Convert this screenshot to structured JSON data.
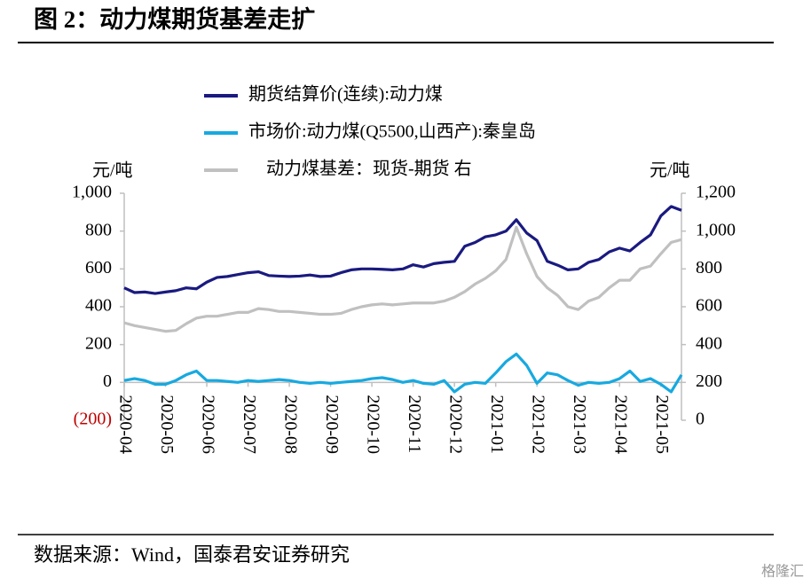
{
  "title": "图 2：动力煤期货基差走扩",
  "source": "数据来源：Wind，国泰君安证券研究",
  "watermark": "格隆汇",
  "chart_data": {
    "type": "line",
    "y_label": "元/吨",
    "y2_label": "元/吨",
    "categories": [
      "2020-04",
      null,
      null,
      null,
      "2020-05",
      null,
      null,
      null,
      "2020-06",
      null,
      null,
      null,
      "2020-07",
      null,
      null,
      null,
      "2020-08",
      null,
      null,
      null,
      "2020-09",
      null,
      null,
      null,
      "2020-10",
      null,
      null,
      null,
      "2020-11",
      null,
      null,
      null,
      "2020-12",
      null,
      null,
      null,
      "2021-01",
      null,
      null,
      null,
      "2021-02",
      null,
      null,
      null,
      "2021-03",
      null,
      null,
      null,
      "2021-04",
      null,
      null,
      null,
      "2021-05",
      null,
      null
    ],
    "ylim": [
      -200,
      1000
    ],
    "yticks": [
      {
        "value": -200,
        "label": "(200)"
      },
      0,
      200,
      400,
      600,
      800,
      {
        "value": 1000,
        "label": "1,000"
      }
    ],
    "y2lim": [
      0,
      1200
    ],
    "y2ticks": [
      0,
      200,
      400,
      600,
      800,
      {
        "value": 1000,
        "label": "1,000"
      },
      {
        "value": 1200,
        "label": "1,200"
      }
    ],
    "series": [
      {
        "name": "期货结算价(连续):动力煤",
        "color": "#1a1a80",
        "values": [
          500,
          475,
          478,
          470,
          478,
          485,
          500,
          495,
          530,
          555,
          560,
          570,
          580,
          585,
          565,
          562,
          560,
          562,
          568,
          560,
          562,
          580,
          595,
          600,
          600,
          598,
          595,
          600,
          622,
          610,
          628,
          635,
          640,
          720,
          740,
          770,
          780,
          800,
          860,
          790,
          750,
          640,
          620,
          595,
          600,
          635,
          650,
          690,
          710,
          695,
          740,
          780,
          880,
          930,
          910
        ]
      },
      {
        "name": "市场价:动力煤(Q5500,山西产):秦皇岛",
        "color": "#17a9e0",
        "values": [
          10,
          20,
          10,
          -10,
          -10,
          10,
          40,
          60,
          10,
          10,
          5,
          0,
          10,
          5,
          10,
          15,
          10,
          0,
          -5,
          0,
          -5,
          0,
          5,
          10,
          20,
          25,
          15,
          0,
          10,
          -5,
          -10,
          10,
          -50,
          -10,
          0,
          -5,
          50,
          110,
          150,
          90,
          -5,
          50,
          40,
          10,
          -15,
          0,
          -5,
          0,
          20,
          60,
          5,
          20,
          -10,
          -50,
          40
        ]
      },
      {
        "name": "动力煤基差：现货-期货 右",
        "color": "#c0c0c0",
        "axis": "y2",
        "values": [
          515,
          500,
          490,
          480,
          470,
          475,
          510,
          540,
          550,
          550,
          560,
          570,
          570,
          590,
          585,
          575,
          575,
          570,
          565,
          560,
          560,
          565,
          585,
          600,
          610,
          615,
          610,
          615,
          620,
          620,
          620,
          630,
          650,
          680,
          720,
          750,
          790,
          850,
          1020,
          880,
          760,
          700,
          660,
          600,
          585,
          630,
          650,
          700,
          740,
          740,
          800,
          815,
          880,
          940,
          955
        ]
      }
    ]
  }
}
